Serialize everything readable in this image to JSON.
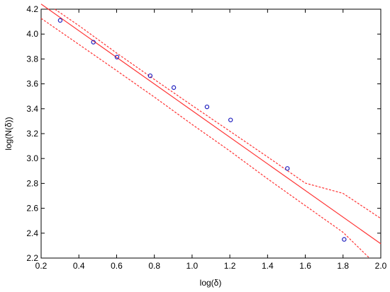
{
  "chart_data": {
    "type": "scatter",
    "title": "",
    "xlabel": "log(δ)",
    "ylabel": "log(N(δ))",
    "xlim": [
      0.2,
      2.0
    ],
    "ylim": [
      2.2,
      4.2
    ],
    "xticks": [
      "0.2",
      "0.4",
      "0.6",
      "0.8",
      "1.0",
      "1.2",
      "1.4",
      "1.6",
      "1.8",
      "2.0"
    ],
    "yticks": [
      "2.2",
      "2.4",
      "2.6",
      "2.8",
      "3.0",
      "3.2",
      "3.4",
      "3.6",
      "3.8",
      "4.0",
      "4.2"
    ],
    "grid": false,
    "points": [
      {
        "x": 0.301,
        "y": 4.11
      },
      {
        "x": 0.477,
        "y": 3.935
      },
      {
        "x": 0.602,
        "y": 3.815
      },
      {
        "x": 0.778,
        "y": 3.665
      },
      {
        "x": 0.903,
        "y": 3.57
      },
      {
        "x": 1.079,
        "y": 3.415
      },
      {
        "x": 1.204,
        "y": 3.31
      },
      {
        "x": 1.505,
        "y": 2.92
      },
      {
        "x": 1.806,
        "y": 2.35
      }
    ],
    "fit_line": {
      "x": [
        0.2,
        2.0
      ],
      "y": [
        4.241,
        2.315
      ]
    },
    "confidence_bands": {
      "upper": {
        "x": [
          0.273,
          0.4,
          0.6,
          0.8,
          1.0,
          1.2,
          1.4,
          1.6,
          1.8,
          2.0
        ],
        "y": [
          4.2,
          4.068,
          3.848,
          3.635,
          3.426,
          3.22,
          3.013,
          2.802,
          2.72,
          2.518
        ]
      },
      "lower": {
        "x": [
          0.2,
          0.4,
          0.6,
          0.8,
          1.0,
          1.2,
          1.4,
          1.6,
          1.8,
          1.94
        ],
        "y": [
          4.126,
          3.917,
          3.707,
          3.494,
          3.274,
          3.061,
          2.837,
          2.621,
          2.407,
          2.2
        ]
      }
    },
    "colors": {
      "points": "#1f1fbf",
      "fit": "#ff3333",
      "axis": "#000000"
    }
  }
}
